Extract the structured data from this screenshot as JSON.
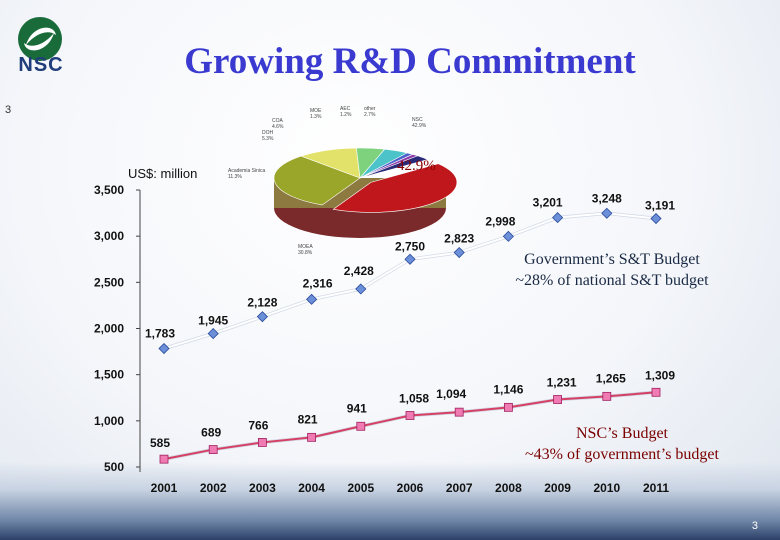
{
  "title": "Growing R&D Commitment",
  "logo_text": "NSC",
  "slide_number": "3",
  "chart_data": {
    "type": "line",
    "x": [
      "2001",
      "2002",
      "2003",
      "2004",
      "2005",
      "2006",
      "2007",
      "2008",
      "2009",
      "2010",
      "2011"
    ],
    "series": [
      {
        "values": [
          1783,
          1945,
          2128,
          2316,
          2428,
          2750,
          2823,
          2998,
          3201,
          3248,
          3191
        ],
        "labels": [
          "1,783",
          "1,945",
          "2,128",
          "2,316",
          "2,428",
          "2,750",
          "2,823",
          "2,998",
          "3,201",
          "3,248",
          "3,191"
        ]
      },
      {
        "values": [
          585,
          689,
          766,
          821,
          941,
          1058,
          1094,
          1146,
          1231,
          1265,
          1309
        ],
        "labels": [
          "585",
          "689",
          "766",
          "821",
          "941",
          "1,058",
          "1,094",
          "1,146",
          "1,231",
          "1,265",
          "1,309"
        ]
      }
    ],
    "ylabel": "US$: million",
    "yticks": [
      "3,500",
      "3,000",
      "2,500",
      "2,000",
      "1,500",
      "1,000",
      "500"
    ],
    "ytick_values": [
      3500,
      3000,
      2500,
      2000,
      1500,
      1000,
      500
    ],
    "ylim": [
      500,
      3500
    ],
    "grid": false,
    "colors": {
      "gov_line": "#ffffff",
      "gov_marker": "#6b8fd8",
      "nsc_line": "#d64064",
      "nsc_marker": "#f07ab2"
    }
  },
  "annotations": {
    "gov_line1": "Government’s S&T Budget",
    "gov_line2": "~28% of national S&T budget",
    "nsc_line1": "NSC’s Budget",
    "nsc_line2": "~43% of government’s budget"
  },
  "pie": {
    "highlight_pct": "42.9%",
    "labels": [
      {
        "name": "NSC",
        "pct": "42.9%"
      },
      {
        "name": "MOEA",
        "pct": "30.8%"
      },
      {
        "name": "Academia Sinica",
        "pct": "11.3%"
      },
      {
        "name": "DOH",
        "pct": "5.3%"
      },
      {
        "name": "COA",
        "pct": "4.6%"
      },
      {
        "name": "MOE",
        "pct": "1.3%"
      },
      {
        "name": "AEC",
        "pct": "1.2%"
      },
      {
        "name": "other",
        "pct": "2.7%"
      }
    ],
    "colors": [
      "#c0171c",
      "#9aa62a",
      "#e2e26a",
      "#7ed27e",
      "#4cc3c9",
      "#4a63c8",
      "#8f3aa8",
      "#2a2a7a"
    ]
  }
}
